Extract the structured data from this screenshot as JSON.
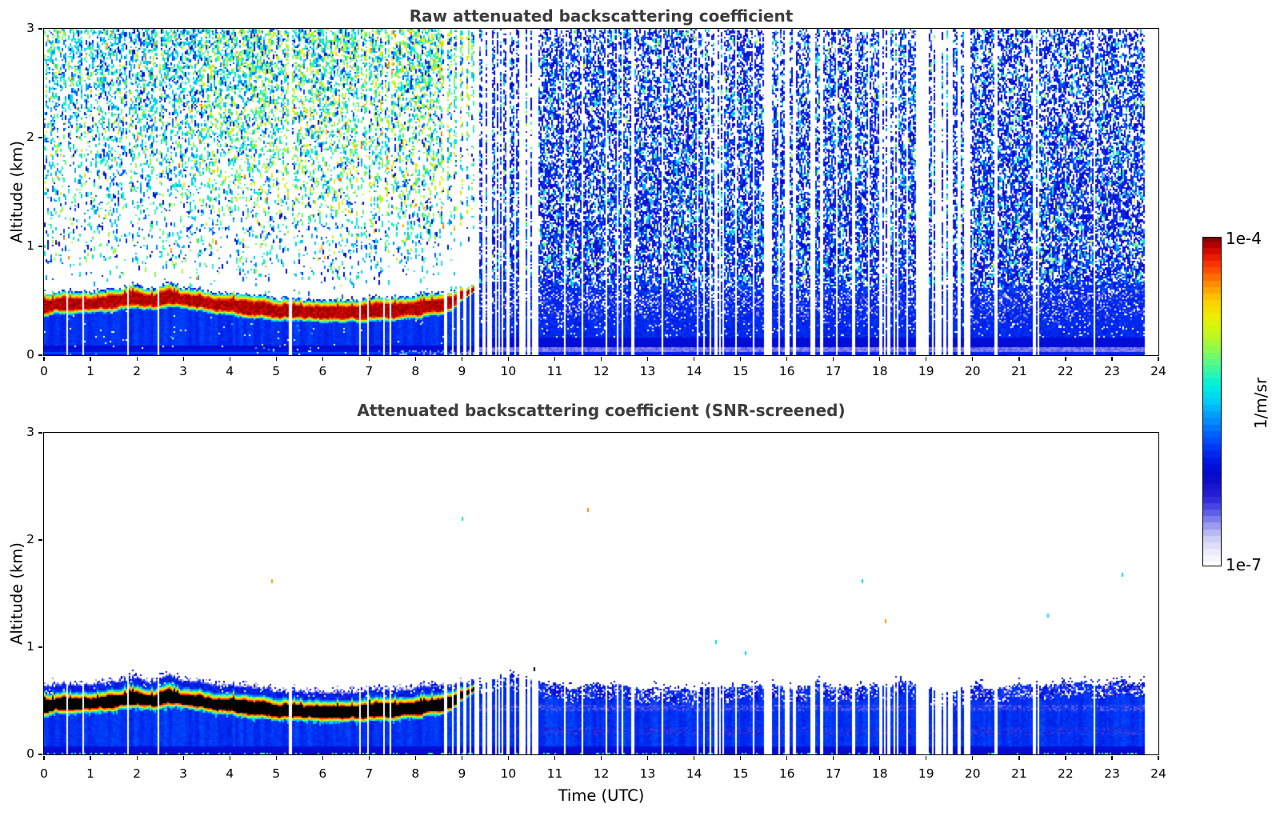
{
  "axis_labels": {
    "time": "Time (UTC)",
    "altitude": "Altitude (km)"
  },
  "chart_data": [
    {
      "type": "heatmap",
      "title": "Raw attenuated backscattering coefficient",
      "ylabel": "Altitude (km)",
      "xlim": [
        0,
        24
      ],
      "ylim": [
        0,
        3
      ],
      "x_ticks": [
        0,
        1,
        2,
        3,
        4,
        5,
        6,
        7,
        8,
        9,
        10,
        11,
        12,
        13,
        14,
        15,
        16,
        17,
        18,
        19,
        20,
        21,
        22,
        23,
        24
      ],
      "y_ticks": [
        0,
        1,
        2,
        3
      ],
      "grid": false,
      "data_end_hour": 23.72,
      "aerosol_layer_center_km": [
        [
          0,
          0.46
        ],
        [
          0.5,
          0.465
        ],
        [
          1,
          0.47
        ],
        [
          1.5,
          0.49
        ],
        [
          2,
          0.52
        ],
        [
          2.4,
          0.5
        ],
        [
          2.7,
          0.55
        ],
        [
          3,
          0.52
        ],
        [
          3.5,
          0.47
        ],
        [
          4,
          0.45
        ],
        [
          4.5,
          0.43
        ],
        [
          5,
          0.41
        ],
        [
          5.5,
          0.395
        ],
        [
          6,
          0.39
        ],
        [
          6.5,
          0.39
        ],
        [
          7,
          0.4
        ],
        [
          7.5,
          0.415
        ],
        [
          8,
          0.43
        ],
        [
          8.5,
          0.455
        ],
        [
          8.8,
          0.48
        ],
        [
          9.1,
          0.52
        ],
        [
          9.4,
          0.56
        ]
      ],
      "layer_breakup_interval_hours": [
        8.6,
        9.35
      ],
      "residual_layer_top_km": [
        [
          9.4,
          0.68
        ],
        [
          10,
          0.72
        ],
        [
          10.5,
          0.7
        ],
        [
          11,
          0.66
        ],
        [
          11.5,
          0.62
        ],
        [
          12,
          0.63
        ],
        [
          12.5,
          0.6
        ],
        [
          13,
          0.62
        ],
        [
          13.5,
          0.64
        ],
        [
          14,
          0.64
        ],
        [
          14.5,
          0.66
        ],
        [
          15,
          0.63
        ],
        [
          15.5,
          0.62
        ],
        [
          16,
          0.64
        ],
        [
          16.5,
          0.66
        ],
        [
          17,
          0.63
        ],
        [
          17.5,
          0.65
        ],
        [
          18,
          0.66
        ],
        [
          18.5,
          0.65
        ],
        [
          19,
          0.64
        ],
        [
          19.5,
          0.6
        ],
        [
          20,
          0.62
        ],
        [
          20.5,
          0.63
        ],
        [
          21,
          0.64
        ],
        [
          21.5,
          0.65
        ],
        [
          22,
          0.66
        ],
        [
          22.5,
          0.67
        ],
        [
          23,
          0.68
        ],
        [
          23.72,
          0.7
        ]
      ],
      "data_gap_intervals_hours": [
        [
          5.28,
          5.33
        ],
        [
          6.78,
          6.83
        ],
        [
          6.95,
          6.99
        ],
        [
          7.29,
          7.35
        ],
        [
          7.45,
          7.49
        ],
        [
          8.63,
          8.68
        ],
        [
          8.9,
          8.95
        ],
        [
          9.03,
          9.1
        ],
        [
          9.16,
          9.21
        ],
        [
          9.28,
          9.34
        ],
        [
          9.43,
          9.52
        ],
        [
          9.58,
          9.63
        ],
        [
          9.7,
          9.76
        ],
        [
          9.84,
          9.89
        ],
        [
          9.97,
          10.03
        ],
        [
          10.12,
          10.18
        ],
        [
          10.28,
          10.33
        ],
        [
          10.42,
          10.47
        ],
        [
          10.55,
          10.66
        ],
        [
          11.19,
          11.24
        ],
        [
          11.57,
          11.6
        ],
        [
          12.09,
          12.13
        ],
        [
          12.33,
          12.37
        ],
        [
          13.29,
          13.33
        ],
        [
          14.06,
          14.11
        ],
        [
          14.2,
          14.24
        ],
        [
          14.32,
          14.37
        ],
        [
          14.44,
          14.52
        ],
        [
          15.54,
          15.63
        ],
        [
          15.97,
          16.07
        ],
        [
          16.14,
          16.18
        ],
        [
          16.52,
          16.62
        ],
        [
          16.74,
          16.78
        ],
        [
          17.44,
          17.48
        ],
        [
          17.97,
          18.06
        ],
        [
          18.17,
          18.22
        ],
        [
          18.57,
          18.61
        ],
        [
          18.78,
          19.07
        ],
        [
          19.12,
          19.16
        ],
        [
          19.24,
          19.29
        ],
        [
          19.38,
          19.44
        ],
        [
          19.52,
          19.58
        ],
        [
          19.66,
          19.73
        ],
        [
          19.82,
          19.88
        ],
        [
          20.46,
          20.54
        ],
        [
          21.31,
          21.35
        ],
        [
          23.72,
          24.01
        ]
      ],
      "micro_gap_bands": [
        {
          "t0": 0,
          "t1": 8.6,
          "p": 0.0025
        },
        {
          "t0": 8.6,
          "t1": 9.35,
          "p": 0.18
        },
        {
          "t0": 9.35,
          "t1": 10.6,
          "p": 0.25
        },
        {
          "t0": 10.6,
          "t1": 13.8,
          "p": 0.05
        },
        {
          "t0": 13.8,
          "t1": 18.85,
          "p": 0.15
        },
        {
          "t0": 19.0,
          "t1": 19.95,
          "p": 0.33
        },
        {
          "t0": 20.3,
          "t1": 23.7,
          "p": 0.012
        }
      ],
      "noise": {
        "night_base_density": 0.055,
        "night_top_density": 0.43,
        "day_edge_density": 0.6,
        "day_top_density": 0.38,
        "green_yellow_boost_hours": [
          3.4,
          9.4
        ]
      }
    },
    {
      "type": "heatmap",
      "title": "Attenuated backscattering coefficient (SNR-screened)",
      "xlabel": "Time (UTC)",
      "ylabel": "Altitude (km)",
      "xlim": [
        0,
        24
      ],
      "ylim": [
        0,
        3
      ],
      "x_ticks": [
        0,
        1,
        2,
        3,
        4,
        5,
        6,
        7,
        8,
        9,
        10,
        11,
        12,
        13,
        14,
        15,
        16,
        17,
        18,
        19,
        20,
        21,
        22,
        23,
        24
      ],
      "y_ticks": [
        0,
        1,
        2,
        3
      ],
      "grid": false,
      "uses_same_layer_profile": true,
      "saturated_core_color": "#000000",
      "pale_bands_km": [
        [
          0.4,
          0.47
        ],
        [
          0.18,
          0.25
        ]
      ],
      "specks": [
        {
          "t": 4.9,
          "a": 1.62,
          "c": "#ffa000"
        },
        {
          "t": 9.0,
          "a": 2.2,
          "c": "#00e8d0"
        },
        {
          "t": 10.55,
          "a": 0.8,
          "c": "#000000"
        },
        {
          "t": 11.7,
          "a": 2.28,
          "c": "#ff8800"
        },
        {
          "t": 14.45,
          "a": 1.05,
          "c": "#00e0f0"
        },
        {
          "t": 15.1,
          "a": 0.95,
          "c": "#00e0f0"
        },
        {
          "t": 17.6,
          "a": 1.62,
          "c": "#00e8d0"
        },
        {
          "t": 18.1,
          "a": 1.25,
          "c": "#ff9800"
        },
        {
          "t": 21.6,
          "a": 1.3,
          "c": "#00e0f0"
        },
        {
          "t": 23.2,
          "a": 1.68,
          "c": "#00e8d0"
        }
      ]
    },
    {
      "type": "colorbar",
      "orientation": "vertical",
      "scale": "log",
      "range": [
        "1e-7",
        "1e-4"
      ],
      "max_label": "1e-4",
      "min_label": "1e-7",
      "units_label": "1/m/sr",
      "levels": 50,
      "colormap_stops": [
        [
          0.0,
          "#ffffff"
        ],
        [
          0.045,
          "#e8e8fa"
        ],
        [
          0.09,
          "#c6c6f6"
        ],
        [
          0.13,
          "#8c8cf0"
        ],
        [
          0.17,
          "#5050e8"
        ],
        [
          0.21,
          "#2820d8"
        ],
        [
          0.27,
          "#0808c8"
        ],
        [
          0.31,
          "#0010de"
        ],
        [
          0.35,
          "#0030f4"
        ],
        [
          0.4,
          "#0060ff"
        ],
        [
          0.45,
          "#0096ff"
        ],
        [
          0.5,
          "#00cdfa"
        ],
        [
          0.55,
          "#00f0dc"
        ],
        [
          0.6,
          "#3cf8a0"
        ],
        [
          0.65,
          "#82fa5a"
        ],
        [
          0.7,
          "#bef81e"
        ],
        [
          0.755,
          "#ebf000"
        ],
        [
          0.81,
          "#ffcd00"
        ],
        [
          0.86,
          "#ff8c00"
        ],
        [
          0.905,
          "#ff4600"
        ],
        [
          0.95,
          "#e41000"
        ],
        [
          0.98,
          "#b00000"
        ],
        [
          1.0,
          "#860000"
        ]
      ]
    }
  ]
}
